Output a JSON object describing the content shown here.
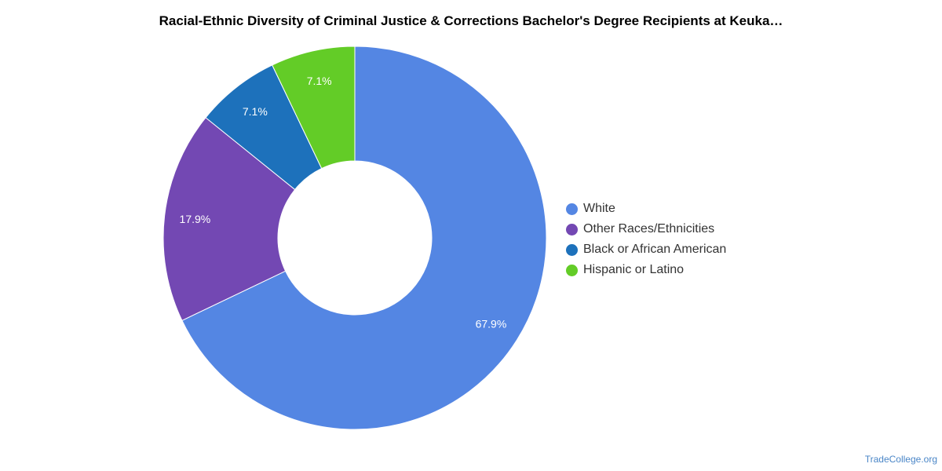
{
  "chart_data": {
    "type": "pie",
    "title": "Racial-Ethnic Diversity of Criminal Justice & Corrections Bachelor's Degree Recipients at Keuka…",
    "donut": true,
    "legend_position": "right",
    "series": [
      {
        "name": "White",
        "value": 67.9,
        "label": "67.9%",
        "color": "#5486e3"
      },
      {
        "name": "Other Races/Ethnicities",
        "value": 17.9,
        "label": "17.9%",
        "color": "#7348b3"
      },
      {
        "name": "Black or African American",
        "value": 7.1,
        "label": "7.1%",
        "color": "#1d71bb"
      },
      {
        "name": "Hispanic or Latino",
        "value": 7.1,
        "label": "7.1%",
        "color": "#63cc27"
      }
    ]
  },
  "source": "TradeCollege.org"
}
